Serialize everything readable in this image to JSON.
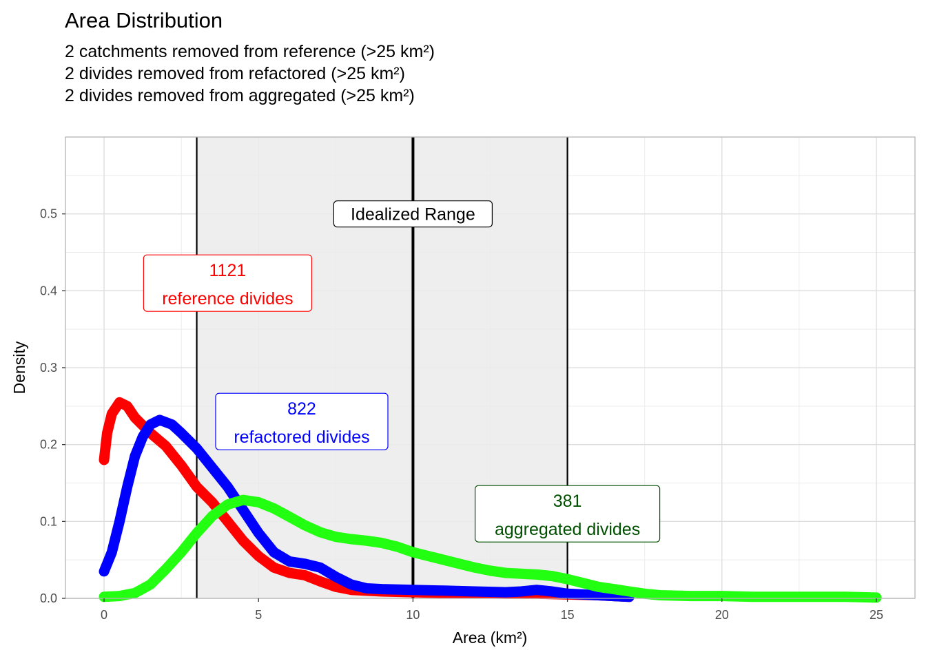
{
  "chart_data": {
    "type": "line",
    "title": "Area Distribution",
    "subtitle": [
      "2 catchments removed from reference (>25 km²)",
      "2 divides removed from refactored (>25 km²)",
      "2 divides removed from aggregated (>25 km²)"
    ],
    "xlabel": "Area (km²)",
    "ylabel": "Density",
    "xlim": [
      -1.25,
      26.25
    ],
    "ylim": [
      0,
      0.6
    ],
    "x_ticks": [
      0,
      5,
      10,
      15,
      20,
      25
    ],
    "x_tick_labels": [
      "0",
      "5",
      "10",
      "15",
      "20",
      "25"
    ],
    "y_ticks": [
      0,
      0.1,
      0.2,
      0.3,
      0.4,
      0.5
    ],
    "y_tick_labels": [
      "0.0",
      "0.1",
      "0.2",
      "0.3",
      "0.4",
      "0.5"
    ],
    "grid": true,
    "idealized_range": {
      "xmin": 3,
      "xmax": 15,
      "center": 10,
      "label": "Idealized Range",
      "label_y": 0.5
    },
    "series": [
      {
        "name": "reference divides",
        "color": "#ff0000",
        "points": [
          [
            0,
            0.18
          ],
          [
            0.1,
            0.215
          ],
          [
            0.25,
            0.24
          ],
          [
            0.5,
            0.255
          ],
          [
            0.75,
            0.25
          ],
          [
            1,
            0.235
          ],
          [
            1.5,
            0.215
          ],
          [
            2,
            0.198
          ],
          [
            2.5,
            0.173
          ],
          [
            3,
            0.145
          ],
          [
            3.5,
            0.125
          ],
          [
            4,
            0.1
          ],
          [
            4.5,
            0.075
          ],
          [
            5,
            0.055
          ],
          [
            5.5,
            0.04
          ],
          [
            6,
            0.033
          ],
          [
            6.5,
            0.03
          ],
          [
            7,
            0.022
          ],
          [
            7.5,
            0.015
          ],
          [
            8,
            0.011
          ],
          [
            9,
            0.009
          ],
          [
            10,
            0.008
          ],
          [
            11,
            0.007
          ],
          [
            12,
            0.007
          ],
          [
            13,
            0.006
          ],
          [
            14,
            0.006
          ],
          [
            15,
            0.005
          ],
          [
            16,
            0.004
          ],
          [
            17,
            0.002
          ]
        ],
        "label": {
          "count": "1121",
          "text": "reference divides",
          "x": 4,
          "y": 0.41
        }
      },
      {
        "name": "refactored divides",
        "color": "#0000ff",
        "points": [
          [
            0,
            0.035
          ],
          [
            0.25,
            0.06
          ],
          [
            0.5,
            0.1
          ],
          [
            0.75,
            0.145
          ],
          [
            1,
            0.185
          ],
          [
            1.25,
            0.21
          ],
          [
            1.5,
            0.226
          ],
          [
            1.8,
            0.232
          ],
          [
            2.2,
            0.226
          ],
          [
            2.5,
            0.215
          ],
          [
            3,
            0.195
          ],
          [
            3.5,
            0.17
          ],
          [
            4,
            0.145
          ],
          [
            4.5,
            0.115
          ],
          [
            5,
            0.085
          ],
          [
            5.5,
            0.06
          ],
          [
            6,
            0.048
          ],
          [
            6.5,
            0.045
          ],
          [
            7,
            0.04
          ],
          [
            7.5,
            0.028
          ],
          [
            8,
            0.018
          ],
          [
            8.5,
            0.013
          ],
          [
            9,
            0.012
          ],
          [
            10,
            0.011
          ],
          [
            11,
            0.01
          ],
          [
            12,
            0.009
          ],
          [
            13,
            0.008
          ],
          [
            13.5,
            0.009
          ],
          [
            14,
            0.011
          ],
          [
            14.5,
            0.009
          ],
          [
            15,
            0.006
          ],
          [
            16,
            0.004
          ],
          [
            17,
            0.002
          ]
        ],
        "label": {
          "count": "822",
          "text": "refactored divides",
          "x": 6.4,
          "y": 0.23
        }
      },
      {
        "name": "aggregated divides",
        "color": "#22ff11",
        "points": [
          [
            0,
            0.002
          ],
          [
            0.5,
            0.003
          ],
          [
            1,
            0.007
          ],
          [
            1.5,
            0.018
          ],
          [
            2,
            0.038
          ],
          [
            2.5,
            0.06
          ],
          [
            3,
            0.085
          ],
          [
            3.5,
            0.107
          ],
          [
            4,
            0.122
          ],
          [
            4.5,
            0.128
          ],
          [
            5,
            0.125
          ],
          [
            5.5,
            0.117
          ],
          [
            6,
            0.106
          ],
          [
            6.5,
            0.095
          ],
          [
            7,
            0.086
          ],
          [
            7.5,
            0.08
          ],
          [
            8,
            0.077
          ],
          [
            8.5,
            0.075
          ],
          [
            9,
            0.072
          ],
          [
            9.5,
            0.067
          ],
          [
            10,
            0.06
          ],
          [
            10.5,
            0.055
          ],
          [
            11,
            0.05
          ],
          [
            11.5,
            0.045
          ],
          [
            12,
            0.04
          ],
          [
            12.5,
            0.036
          ],
          [
            13,
            0.033
          ],
          [
            13.5,
            0.032
          ],
          [
            14,
            0.031
          ],
          [
            14.5,
            0.029
          ],
          [
            15,
            0.025
          ],
          [
            15.5,
            0.02
          ],
          [
            16,
            0.015
          ],
          [
            16.5,
            0.012
          ],
          [
            17,
            0.009
          ],
          [
            17.5,
            0.006
          ],
          [
            18,
            0.004
          ],
          [
            19,
            0.003
          ],
          [
            20,
            0.003
          ],
          [
            21,
            0.002
          ],
          [
            22,
            0.002
          ],
          [
            23,
            0.002
          ],
          [
            24,
            0.002
          ],
          [
            25,
            0.001
          ]
        ],
        "label": {
          "count": "381",
          "text": "aggregated divides",
          "x": 15,
          "y": 0.11
        }
      }
    ]
  },
  "colors": {
    "panel_grid": "#dcdcdc",
    "panel_border": "#b3b3b3",
    "range_fill": "#ebebeb",
    "aggregated_text": "#005000"
  }
}
